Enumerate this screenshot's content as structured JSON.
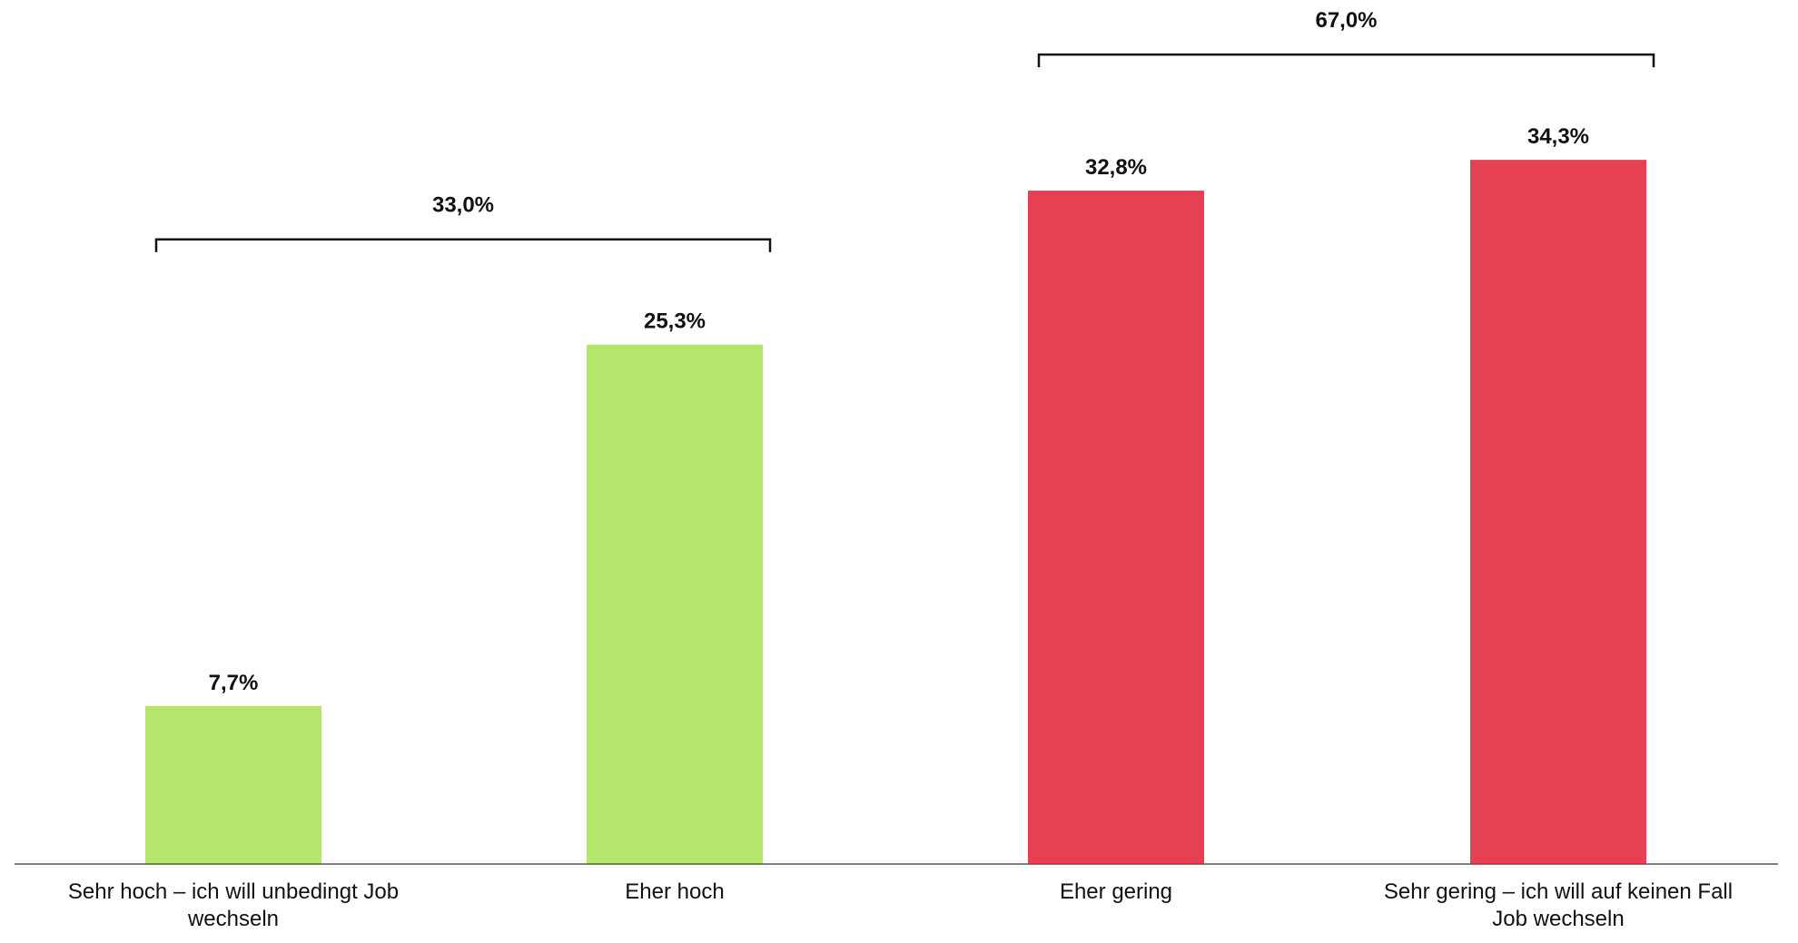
{
  "chart_data": {
    "type": "bar",
    "categories": [
      [
        "Sehr hoch – ich will unbedingt Job",
        "wechseln"
      ],
      [
        "Eher hoch"
      ],
      [
        "Eher gering"
      ],
      [
        "Sehr gering – ich will auf keinen Fall",
        "Job wechseln"
      ]
    ],
    "values": [
      7.7,
      25.3,
      32.8,
      34.3
    ],
    "value_labels": [
      "7,7%",
      "25,3%",
      "32,8%",
      "34,3%"
    ],
    "colors": [
      "#b3e66a",
      "#b3e66a",
      "#e64152",
      "#e64152"
    ],
    "groups": [
      {
        "label": "33,0%",
        "value": 33.0,
        "categories": [
          0,
          1
        ]
      },
      {
        "label": "67,0%",
        "value": 67.0,
        "categories": [
          2,
          3
        ]
      }
    ],
    "ylim": [
      0,
      40
    ],
    "grid": false,
    "legend": "none"
  }
}
